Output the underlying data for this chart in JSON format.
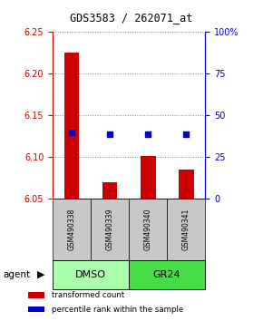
{
  "title": "GDS3583 / 262071_at",
  "samples": [
    "GSM490338",
    "GSM490339",
    "GSM490340",
    "GSM490341"
  ],
  "bar_values": [
    6.225,
    6.07,
    6.102,
    6.085
  ],
  "bar_base": 6.05,
  "percentile_values": [
    6.13,
    6.128,
    6.128,
    6.128
  ],
  "bar_color": "#cc0000",
  "dot_color": "#0000cc",
  "ylim_left": [
    6.05,
    6.25
  ],
  "ylim_right": [
    0,
    100
  ],
  "yticks_left": [
    6.05,
    6.1,
    6.15,
    6.2,
    6.25
  ],
  "yticks_right": [
    0,
    25,
    50,
    75,
    100
  ],
  "ytick_labels_right": [
    "0",
    "25",
    "50",
    "75",
    "100%"
  ],
  "groups": [
    {
      "label": "DMSO",
      "samples": [
        0,
        1
      ],
      "color": "#aaffaa"
    },
    {
      "label": "GR24",
      "samples": [
        2,
        3
      ],
      "color": "#44dd44"
    }
  ],
  "group_label": "agent",
  "bar_width": 0.4,
  "legend_labels": [
    "transformed count",
    "percentile rank within the sample"
  ],
  "legend_colors": [
    "#cc0000",
    "#0000cc"
  ],
  "sample_box_color": "#c8c8c8"
}
